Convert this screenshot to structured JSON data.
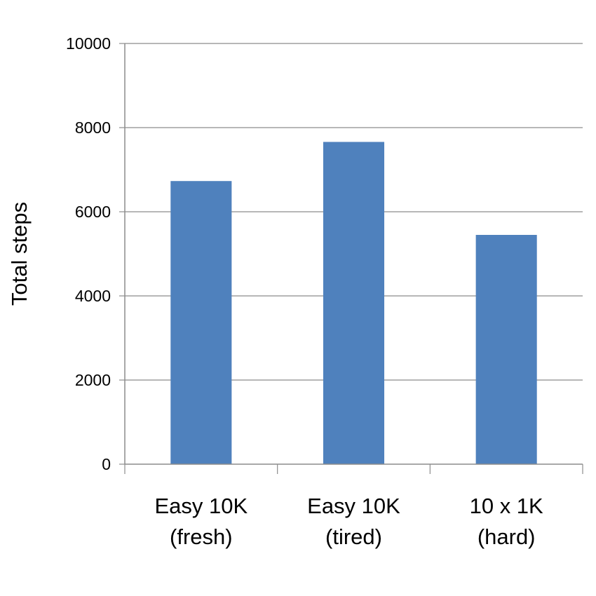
{
  "chart_data": {
    "type": "bar",
    "categories": [
      [
        "Easy 10K",
        "(fresh)"
      ],
      [
        "Easy 10K",
        "(tired)"
      ],
      [
        "10 x 1K",
        "(hard)"
      ]
    ],
    "values": [
      6730,
      7660,
      5450
    ],
    "title": "",
    "xlabel": "",
    "ylabel": "Total steps",
    "ylim": [
      0,
      10000
    ],
    "yticks": [
      0,
      2000,
      4000,
      6000,
      8000,
      10000
    ],
    "grid": true,
    "legend": "none",
    "bar_color": "#4f81bd",
    "grid_color": "#8c8c8c"
  }
}
